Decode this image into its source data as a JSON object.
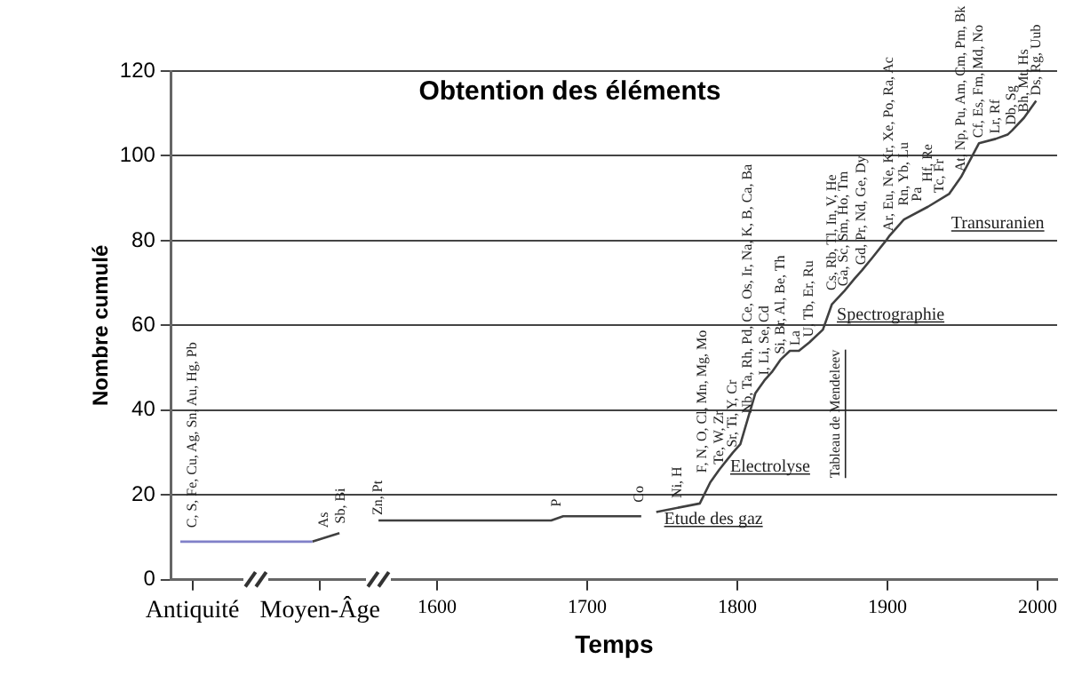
{
  "chart_data": {
    "type": "line",
    "title": "Obtention des éléments",
    "xlabel": "Temps",
    "ylabel": "Nombre cumulé",
    "xlim": [
      1423,
      2013
    ],
    "xticks": [
      {
        "value": 1437,
        "label": "Antiquité"
      },
      {
        "value": 1522,
        "label": "Moyen-Âge"
      },
      1600,
      1700,
      1800,
      1900,
      2000
    ],
    "ylim": [
      0,
      120
    ],
    "yticks": [
      0,
      20,
      40,
      60,
      80,
      100,
      120
    ],
    "grid": "y",
    "legend": false,
    "marker": "none",
    "line_style": "solid",
    "series": [
      {
        "color": "#8080c8",
        "x": [
          1429,
          1517
        ],
        "values": [
          9,
          9
        ]
      },
      {
        "color": "#404040",
        "x": [
          1517,
          1535,
          1540,
          1561,
          1676,
          1684,
          1736,
          1741,
          1746,
          1775,
          1782,
          1788,
          1797,
          1802,
          1807,
          1812,
          1818,
          1823,
          1829,
          1835,
          1841,
          1848,
          1857,
          1863,
          1871,
          1878,
          1883,
          1890,
          1899,
          1901,
          1911,
          1927,
          1941,
          1949,
          1961,
          1972,
          1980,
          1983,
          1991,
          1995,
          1999
        ],
        "values": [
          9,
          11,
          null,
          14,
          14,
          15,
          15,
          null,
          16,
          18,
          23,
          26,
          30,
          32,
          38,
          44,
          47,
          49,
          52,
          54,
          54,
          56,
          59,
          65,
          68,
          71,
          73,
          76,
          80,
          81,
          85,
          88,
          91,
          95,
          103,
          104,
          105,
          106,
          109,
          111,
          113
        ]
      }
    ],
    "annotations": [
      "Etude des gaz",
      "Electrolyse",
      "Spectrographie",
      "Transuranien",
      "Tableau de Mendeleev",
      {
        "text": "C, S, Fe, Cu, Ag, Sn, Au, Hg, Pb",
        "x": 1437,
        "y": 11
      },
      {
        "text": "As",
        "x": 1525,
        "y": 11
      },
      {
        "text": "Sb, Bi",
        "x": 1536,
        "y": 12
      },
      {
        "text": "Zn, Pt",
        "x": 1561,
        "y": 14
      },
      {
        "text": "P",
        "x": 1680,
        "y": 16
      },
      {
        "text": "Co",
        "x": 1735,
        "y": 17
      },
      {
        "text": "Ni, H",
        "x": 1760,
        "y": 18
      },
      {
        "text": "F, N, O, Cl, Mn, Mg, Mo",
        "x": 1777,
        "y": 24
      },
      {
        "text": "Te, W, Zr",
        "x": 1788,
        "y": 26
      },
      {
        "text": "Sr, Ti, Y, Cr",
        "x": 1797,
        "y": 30
      },
      {
        "text": "Nb, Ta, Rh, Pd, Ce, Os, Ir, Na, K, B, Ca, Ba",
        "x": 1807,
        "y": 38
      },
      {
        "text": "I, Li, Se, Cd",
        "x": 1818,
        "y": 47
      },
      {
        "text": "Si, Br, Al, Be, Th",
        "x": 1829,
        "y": 52
      },
      {
        "text": "La",
        "x": 1839,
        "y": 54
      },
      {
        "text": "U, Tb, Er, Ru",
        "x": 1848,
        "y": 56
      },
      {
        "text": "Cs, Rb, Tl, In, V, He",
        "x": 1863,
        "y": 67
      },
      {
        "text": "Ga, Sc, Sm, Ho, Tm",
        "x": 1871,
        "y": 68
      },
      {
        "text": "Gd, Pr, Nd, Ge, Dy",
        "x": 1883,
        "y": 73
      },
      {
        "text": "Ar, Eu, Ne, Kr, Xe, Po, Ra, Ac",
        "x": 1901,
        "y": 81
      },
      {
        "text": "Rn, Yb, Lu",
        "x": 1911,
        "y": 87
      },
      {
        "text": "Pa",
        "x": 1920,
        "y": 88
      },
      {
        "text": "Hf, Re",
        "x": 1927,
        "y": 88
      },
      {
        "text": "Tc, Fr",
        "x": 1935,
        "y": 90
      },
      {
        "text": "At, Np, Pu, Am, Cm, Pm, Bk",
        "x": 1949,
        "y": 95
      },
      {
        "text": "Cf, Es, Fm, Md, No",
        "x": 1961,
        "y": 103
      },
      {
        "text": "Lr, Rf",
        "x": 1972,
        "y": 104
      },
      {
        "text": "Db, Sg",
        "x": 1983,
        "y": 106
      },
      {
        "text": "Bh, Mt, Hs",
        "x": 1991,
        "y": 109
      },
      {
        "text": "Ds, Rg, Uub",
        "x": 1999,
        "y": 113
      }
    ]
  }
}
